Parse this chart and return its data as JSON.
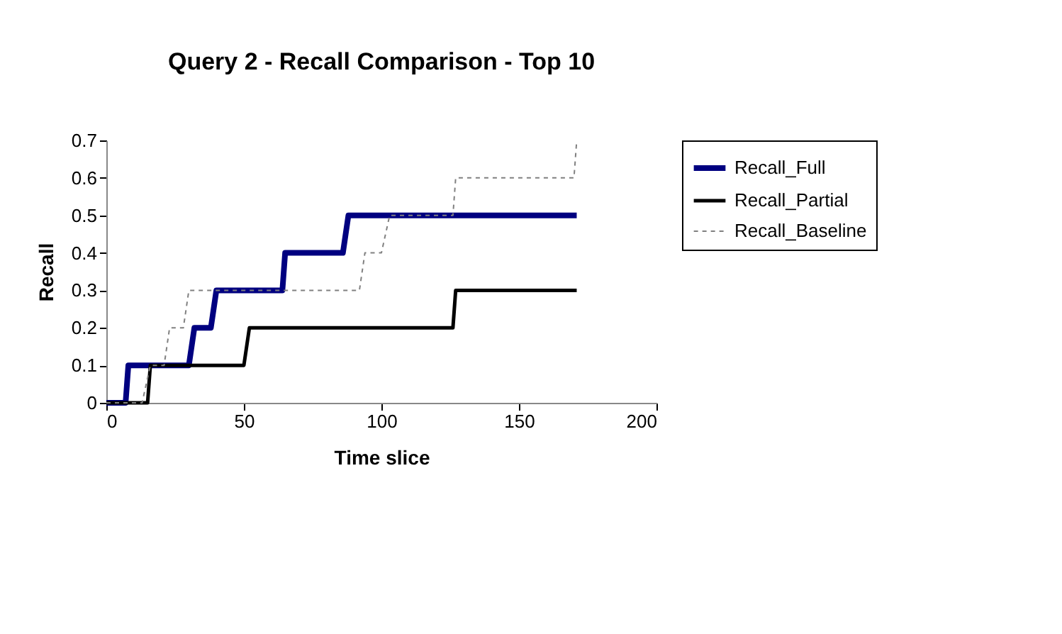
{
  "chart_data": {
    "type": "line",
    "title": "Query 2 - Recall Comparison - Top 10",
    "xlabel": "Time slice",
    "ylabel": "Recall",
    "xlim": [
      0,
      200
    ],
    "xticks": [
      0,
      50,
      100,
      150,
      200
    ],
    "ylim": [
      0,
      0.7
    ],
    "yticks": [
      0,
      0.1,
      0.2,
      0.3,
      0.4,
      0.5,
      0.6,
      0.7
    ],
    "grid": false,
    "legend": "right",
    "marker": "none",
    "series": [
      {
        "name": "Recall_Full",
        "color": "#000080",
        "line_style": "solid",
        "x": [
          0,
          7,
          8,
          30,
          32,
          38,
          40,
          64,
          65,
          86,
          88,
          171
        ],
        "values": [
          0,
          0,
          0.1,
          0.1,
          0.2,
          0.2,
          0.3,
          0.3,
          0.4,
          0.4,
          0.5,
          0.5
        ]
      },
      {
        "name": "Recall_Partial",
        "color": "#000000",
        "line_style": "solid",
        "x": [
          0,
          15,
          16,
          50,
          52,
          126,
          127,
          171
        ],
        "values": [
          0,
          0,
          0.1,
          0.1,
          0.2,
          0.2,
          0.3,
          0.3
        ]
      },
      {
        "name": "Recall_Baseline",
        "color": "#808080",
        "line_style": "dashed",
        "x": [
          0,
          13,
          16,
          21,
          23,
          28,
          30,
          92,
          94,
          100,
          103,
          126,
          127,
          170,
          171
        ],
        "values": [
          0,
          0,
          0.1,
          0.1,
          0.2,
          0.2,
          0.3,
          0.3,
          0.4,
          0.4,
          0.5,
          0.5,
          0.6,
          0.6,
          0.7
        ]
      }
    ]
  }
}
